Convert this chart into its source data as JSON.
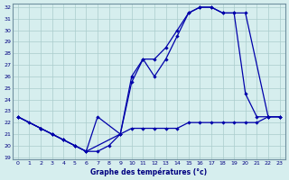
{
  "xlabel": "Graphe des températures (°c)",
  "xlim": [
    -0.5,
    23.5
  ],
  "ylim": [
    18.8,
    32.3
  ],
  "yticks": [
    19,
    20,
    21,
    22,
    23,
    24,
    25,
    26,
    27,
    28,
    29,
    30,
    31,
    32
  ],
  "xticks": [
    0,
    1,
    2,
    3,
    4,
    5,
    6,
    7,
    8,
    9,
    10,
    11,
    12,
    13,
    14,
    15,
    16,
    17,
    18,
    19,
    20,
    21,
    22,
    23
  ],
  "background_color": "#d6eeee",
  "grid_color": "#aacccc",
  "line_color": "#0000aa",
  "s1_x": [
    0,
    1,
    2,
    3,
    4,
    5,
    6,
    7,
    8,
    9,
    10,
    11,
    12,
    13,
    14,
    15,
    16,
    17,
    18,
    19,
    20,
    21,
    22,
    23
  ],
  "s1_y": [
    22.5,
    22.0,
    21.5,
    21.0,
    20.5,
    20.0,
    19.5,
    19.5,
    20.0,
    21.0,
    21.5,
    21.5,
    21.5,
    21.5,
    21.5,
    22.0,
    22.0,
    22.0,
    22.0,
    22.0,
    22.0,
    22.0,
    22.5,
    22.5
  ],
  "s2_x": [
    0,
    2,
    3,
    4,
    5,
    6,
    7,
    9,
    10,
    11,
    12,
    13,
    14,
    15,
    16,
    17,
    18,
    19,
    20,
    21,
    22,
    23
  ],
  "s2_y": [
    22.5,
    21.5,
    21.0,
    20.5,
    20.0,
    19.5,
    22.5,
    21.0,
    25.5,
    27.5,
    26.0,
    27.5,
    29.5,
    31.5,
    32.0,
    32.0,
    31.5,
    31.5,
    24.5,
    22.5,
    22.5,
    22.5
  ],
  "s3_x": [
    0,
    2,
    3,
    4,
    5,
    6,
    9,
    10,
    11,
    12,
    13,
    14,
    15,
    16,
    17,
    18,
    19,
    20,
    22,
    23
  ],
  "s3_y": [
    22.5,
    21.5,
    21.0,
    20.5,
    20.0,
    19.5,
    21.0,
    26.0,
    27.5,
    27.5,
    28.5,
    30.0,
    31.5,
    32.0,
    32.0,
    31.5,
    31.5,
    31.5,
    22.5,
    22.5
  ]
}
